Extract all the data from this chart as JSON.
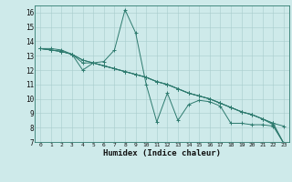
{
  "xlabel": "Humidex (Indice chaleur)",
  "bg_color": "#ceeaea",
  "line_color": "#2d7a6e",
  "grid_color": "#a8cccc",
  "xlim": [
    -0.5,
    23.5
  ],
  "ylim": [
    7,
    16.5
  ],
  "xticks": [
    0,
    1,
    2,
    3,
    4,
    5,
    6,
    7,
    8,
    9,
    10,
    11,
    12,
    13,
    14,
    15,
    16,
    17,
    18,
    19,
    20,
    21,
    22,
    23
  ],
  "yticks": [
    7,
    8,
    9,
    10,
    11,
    12,
    13,
    14,
    15,
    16
  ],
  "series1_x": [
    0,
    1,
    2,
    3,
    4,
    5,
    6,
    7,
    8,
    9,
    10,
    11,
    12,
    13,
    14,
    15,
    16,
    17,
    18,
    19,
    20,
    21,
    22,
    23
  ],
  "series1_y": [
    13.5,
    13.5,
    13.4,
    13.1,
    12.0,
    12.5,
    12.6,
    13.4,
    16.2,
    14.6,
    11.0,
    8.4,
    10.4,
    8.5,
    9.6,
    9.9,
    9.8,
    9.5,
    8.3,
    8.3,
    8.2,
    8.2,
    8.1,
    6.9
  ],
  "series2_x": [
    0,
    1,
    2,
    3,
    4,
    5,
    6,
    7,
    8,
    9,
    10,
    11,
    12,
    13,
    14,
    15,
    16,
    17,
    18,
    19,
    20,
    21,
    22,
    23
  ],
  "series2_y": [
    13.5,
    13.4,
    13.3,
    13.1,
    12.7,
    12.5,
    12.3,
    12.1,
    11.9,
    11.7,
    11.5,
    11.2,
    11.0,
    10.7,
    10.4,
    10.2,
    10.0,
    9.7,
    9.4,
    9.1,
    8.9,
    8.6,
    8.3,
    6.9
  ],
  "series3_x": [
    0,
    1,
    2,
    3,
    4,
    5,
    6,
    7,
    8,
    9,
    10,
    11,
    12,
    13,
    14,
    15,
    16,
    17,
    18,
    19,
    20,
    21,
    22,
    23
  ],
  "series3_y": [
    13.5,
    13.4,
    13.3,
    13.1,
    12.7,
    12.5,
    12.3,
    12.1,
    11.9,
    11.7,
    11.5,
    11.2,
    11.0,
    10.7,
    10.4,
    10.2,
    10.0,
    9.7,
    9.4,
    9.1,
    8.9,
    8.6,
    8.3,
    8.1
  ],
  "series4_x": [
    0,
    1,
    2,
    3,
    4,
    5,
    6,
    7,
    8,
    9,
    10,
    11,
    12,
    13,
    14,
    15,
    16,
    17,
    18,
    19,
    20,
    21,
    22,
    23
  ],
  "series4_y": [
    13.5,
    13.4,
    13.3,
    13.1,
    12.5,
    12.5,
    12.3,
    12.1,
    11.9,
    11.7,
    11.5,
    11.2,
    11.0,
    10.7,
    10.4,
    10.2,
    10.0,
    9.7,
    9.4,
    9.1,
    8.9,
    8.6,
    8.2,
    6.9
  ]
}
